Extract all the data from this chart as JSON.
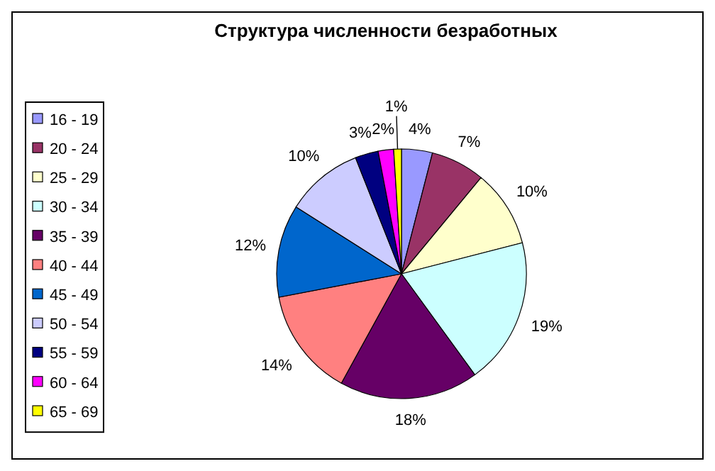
{
  "chart_data": {
    "type": "pie",
    "title": "Структура численности безработных",
    "categories": [
      "16 - 19",
      "20 - 24",
      "25 - 29",
      "30 - 34",
      "35 - 39",
      "40 - 44",
      "45 - 49",
      "50 - 54",
      "55 - 59",
      "60 - 64",
      "65 - 69"
    ],
    "values": [
      4,
      7,
      10,
      19,
      18,
      14,
      12,
      10,
      3,
      2,
      1
    ],
    "colors": [
      "#9999ff",
      "#993366",
      "#ffffcc",
      "#ccffff",
      "#660066",
      "#ff8080",
      "#0066cc",
      "#ccccff",
      "#000080",
      "#ff00ff",
      "#ffff00"
    ],
    "value_labels": [
      "4%",
      "7%",
      "10%",
      "19%",
      "18%",
      "14%",
      "12%",
      "10%",
      "3%",
      "2%",
      "1%"
    ],
    "legend": "left"
  }
}
